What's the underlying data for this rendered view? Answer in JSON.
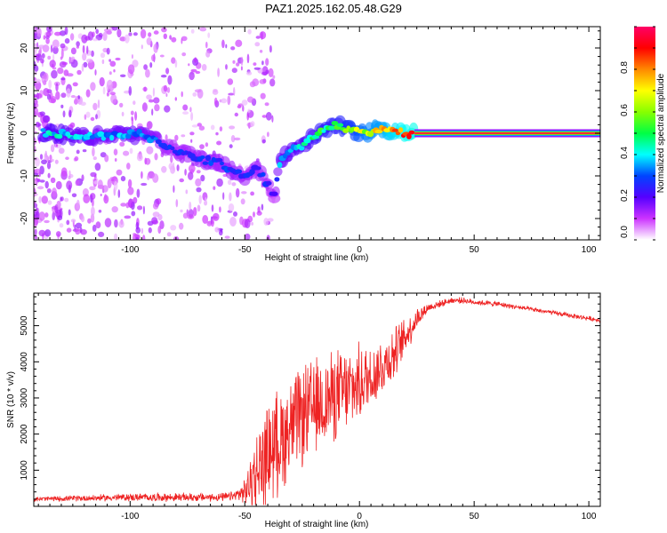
{
  "title": "PAZ1.2025.162.05.48.G29",
  "colors": {
    "snr_line": "#ee2222",
    "frame": "#000000",
    "background": "#ffffff"
  },
  "chart_data": [
    {
      "type": "heatmap",
      "xlabel": "Height of straight line (km)",
      "ylabel": "Frequency (Hz)",
      "xlim": [
        -142,
        105
      ],
      "ylim": [
        -25,
        25
      ],
      "xticks": [
        -100,
        -50,
        0,
        50,
        100
      ],
      "yticks": [
        -20,
        -10,
        0,
        10,
        20
      ],
      "colorbar": {
        "label": "Normalized spectral amplitude",
        "range": [
          0,
          1
        ],
        "ticks": [
          0.0,
          0.2,
          0.4,
          0.6,
          0.8
        ],
        "tick_labels": [
          "0.0",
          "0.2",
          "0.4",
          "0.6",
          "0.8"
        ],
        "colormap": [
          "#ffffff",
          "#cc33ff",
          "#5500ff",
          "#0044ff",
          "#00ffff",
          "#00ff44",
          "#88ff00",
          "#ffff00",
          "#ff8800",
          "#ff0000",
          "#ff0066"
        ]
      },
      "ridge": {
        "x": [
          -135,
          -120,
          -110,
          -100,
          -90,
          -85,
          -80,
          -70,
          -60,
          -55,
          -50,
          -45,
          -40,
          -37,
          -35,
          -30,
          -25,
          -20,
          -15,
          -10,
          -5,
          0,
          5,
          10,
          15,
          20,
          25,
          50,
          105
        ],
        "y": [
          0,
          -1,
          -0.5,
          0,
          -1,
          -3,
          -4,
          -6,
          -7,
          -9,
          -10,
          -8,
          -12,
          -15,
          -7,
          -4,
          -3,
          -1,
          1,
          2,
          1,
          0,
          0.5,
          1,
          0.5,
          0,
          0,
          0,
          0
        ],
        "amplitude": [
          0.45,
          0.4,
          0.38,
          0.4,
          0.35,
          0.3,
          0.28,
          0.3,
          0.3,
          0.32,
          0.3,
          0.3,
          0.28,
          0.25,
          0.4,
          0.42,
          0.45,
          0.5,
          0.55,
          0.55,
          0.6,
          0.7,
          0.75,
          0.78,
          0.85,
          0.9,
          0.92,
          0.95,
          0.95
        ]
      }
    },
    {
      "type": "line",
      "xlabel": "Height of straight line (km)",
      "ylabel": "SNR (10 * v/v)",
      "xlim": [
        -142,
        105
      ],
      "ylim": [
        0,
        5900
      ],
      "xticks": [
        -100,
        -50,
        0,
        50,
        100
      ],
      "yticks": [
        1000,
        2000,
        3000,
        4000,
        5000
      ],
      "envelope": {
        "x": [
          -142,
          -100,
          -80,
          -60,
          -55,
          -50,
          -45,
          -40,
          -35,
          -30,
          -25,
          -20,
          -15,
          -10,
          -5,
          0,
          5,
          10,
          15,
          20,
          25,
          30,
          35,
          40,
          45,
          50,
          60,
          70,
          80,
          90,
          100,
          105
        ],
        "mean": [
          200,
          250,
          250,
          250,
          280,
          400,
          900,
          1500,
          1800,
          2200,
          2500,
          2700,
          2900,
          3100,
          3200,
          3400,
          3600,
          3900,
          4200,
          4700,
          5200,
          5500,
          5600,
          5700,
          5700,
          5650,
          5600,
          5500,
          5400,
          5300,
          5200,
          5150
        ],
        "spread": [
          60,
          100,
          110,
          110,
          130,
          300,
          1100,
          1300,
          1400,
          1300,
          1300,
          1300,
          1200,
          1200,
          1100,
          1000,
          900,
          800,
          700,
          500,
          300,
          120,
          90,
          80,
          80,
          70,
          70,
          60,
          60,
          60,
          60,
          60
        ]
      }
    }
  ]
}
